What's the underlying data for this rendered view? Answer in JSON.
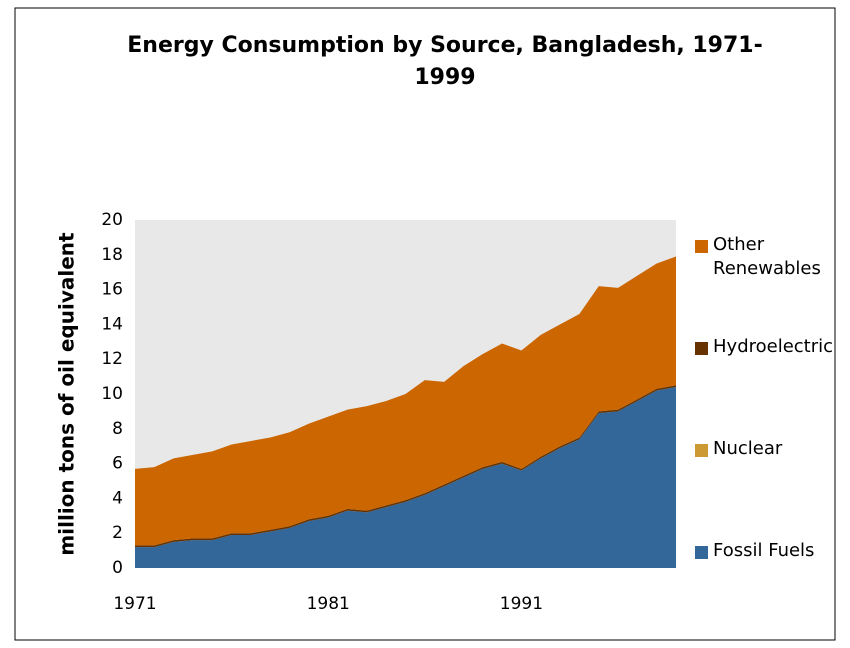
{
  "chart_data": {
    "type": "stacked_area",
    "title": "Energy Consumption by Source, Bangladesh, 1971-1999",
    "y_label": "million tons of oil equivalent",
    "x": [
      1971,
      1972,
      1973,
      1974,
      1975,
      1976,
      1977,
      1978,
      1979,
      1980,
      1981,
      1982,
      1983,
      1984,
      1985,
      1986,
      1987,
      1988,
      1989,
      1990,
      1991,
      1992,
      1993,
      1994,
      1995,
      1996,
      1997,
      1998,
      1999
    ],
    "xlim": [
      1971,
      1999
    ],
    "xticks": [
      1971,
      1981,
      1991
    ],
    "ylim": [
      0,
      20
    ],
    "yticks": [
      0,
      2,
      4,
      6,
      8,
      10,
      12,
      14,
      16,
      18,
      20
    ],
    "series": [
      {
        "name": "Fossil Fuels",
        "color": "#336699",
        "values": [
          1.2,
          1.2,
          1.5,
          1.6,
          1.6,
          1.9,
          1.9,
          2.1,
          2.3,
          2.7,
          2.9,
          3.3,
          3.2,
          3.5,
          3.8,
          4.2,
          4.7,
          5.2,
          5.7,
          6.0,
          5.6,
          6.3,
          6.9,
          7.4,
          8.9,
          9.0,
          9.6,
          10.2,
          10.4
        ]
      },
      {
        "name": "Nuclear",
        "color": "#cc9933",
        "values": [
          0,
          0,
          0,
          0,
          0,
          0,
          0,
          0,
          0,
          0,
          0,
          0,
          0,
          0,
          0,
          0,
          0,
          0,
          0,
          0,
          0,
          0,
          0,
          0,
          0,
          0,
          0,
          0,
          0
        ]
      },
      {
        "name": "Hydroelectric",
        "color": "#663300",
        "values": [
          0.1,
          0.1,
          0.1,
          0.1,
          0.1,
          0.1,
          0.1,
          0.1,
          0.1,
          0.1,
          0.1,
          0.1,
          0.1,
          0.1,
          0.1,
          0.1,
          0.1,
          0.1,
          0.1,
          0.1,
          0.1,
          0.1,
          0.1,
          0.1,
          0.1,
          0.1,
          0.1,
          0.1,
          0.1
        ]
      },
      {
        "name": "Other Renewables",
        "color": "#cc6600",
        "values": [
          4.4,
          4.5,
          4.7,
          4.8,
          5.0,
          5.1,
          5.3,
          5.3,
          5.4,
          5.5,
          5.7,
          5.7,
          6.0,
          6.0,
          6.1,
          6.5,
          5.9,
          6.3,
          6.5,
          6.8,
          6.8,
          7.0,
          7.0,
          7.1,
          7.2,
          7.0,
          7.1,
          7.2,
          7.4
        ]
      }
    ]
  }
}
